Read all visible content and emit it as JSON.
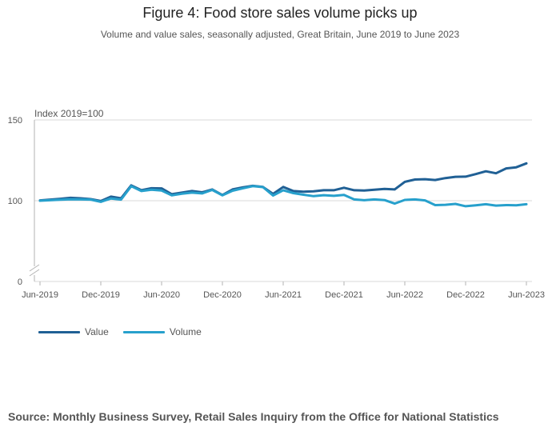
{
  "colors": {
    "value": "#206095",
    "volume": "#27a0cc",
    "grid": "#d9d9d9",
    "axis": "#b3b3b3"
  },
  "chart_data": {
    "type": "line",
    "title": "Figure 4: Food store sales volume picks up",
    "subtitle": "Volume and value sales, seasonally adjusted, Great Britain, June 2019 to June 2023",
    "ylabel": "Index 2019=100",
    "ylim": [
      0,
      150
    ],
    "yticks": [
      0,
      100,
      150
    ],
    "axis_break": true,
    "xticks": [
      "Jun-2019",
      "Dec-2019",
      "Jun-2020",
      "Dec-2020",
      "Jun-2021",
      "Dec-2021",
      "Jun-2022",
      "Dec-2022",
      "Jun-2023"
    ],
    "x": [
      "Jun-2019",
      "Jul-2019",
      "Aug-2019",
      "Sep-2019",
      "Oct-2019",
      "Nov-2019",
      "Dec-2019",
      "Jan-2020",
      "Feb-2020",
      "Mar-2020",
      "Apr-2020",
      "May-2020",
      "Jun-2020",
      "Jul-2020",
      "Aug-2020",
      "Sep-2020",
      "Oct-2020",
      "Nov-2020",
      "Dec-2020",
      "Jan-2021",
      "Feb-2021",
      "Mar-2021",
      "Apr-2021",
      "May-2021",
      "Jun-2021",
      "Jul-2021",
      "Aug-2021",
      "Sep-2021",
      "Oct-2021",
      "Nov-2021",
      "Dec-2021",
      "Jan-2022",
      "Feb-2022",
      "Mar-2022",
      "Apr-2022",
      "May-2022",
      "Jun-2022",
      "Jul-2022",
      "Aug-2022",
      "Sep-2022",
      "Oct-2022",
      "Nov-2022",
      "Dec-2022",
      "Jan-2023",
      "Feb-2023",
      "Mar-2023",
      "Apr-2023",
      "May-2023",
      "Jun-2023"
    ],
    "grid": true,
    "legend_position": "bottom-left",
    "series": [
      {
        "name": "Value",
        "color_key": "value",
        "values": [
          100.2,
          100.7,
          101.2,
          101.8,
          101.5,
          101.0,
          99.8,
          102.5,
          101.5,
          109.5,
          106.5,
          107.7,
          107.6,
          104.0,
          105.0,
          106.0,
          105.2,
          107.0,
          103.5,
          107.0,
          108.2,
          109.2,
          108.5,
          104.2,
          108.5,
          106.0,
          105.6,
          105.8,
          106.5,
          106.5,
          108.0,
          106.5,
          106.3,
          106.8,
          107.3,
          107.0,
          111.7,
          113.1,
          113.3,
          112.8,
          114.0,
          114.8,
          114.9,
          116.5,
          118.2,
          117.0,
          120.0,
          120.7,
          123.1
        ]
      },
      {
        "name": "Volume",
        "color_key": "volume",
        "values": [
          100.0,
          100.3,
          100.6,
          100.9,
          100.8,
          100.7,
          99.3,
          101.4,
          100.7,
          109.0,
          106.0,
          106.8,
          106.3,
          103.3,
          104.3,
          105.0,
          104.5,
          106.7,
          103.3,
          106.2,
          107.6,
          109.0,
          108.4,
          103.2,
          106.5,
          104.7,
          103.7,
          102.8,
          103.4,
          103.0,
          103.6,
          100.8,
          100.3,
          100.8,
          100.4,
          98.2,
          100.5,
          100.8,
          100.2,
          97.3,
          97.5,
          98.0,
          96.6,
          97.2,
          97.8,
          97.0,
          97.3,
          97.2,
          97.8
        ]
      }
    ]
  },
  "source": "Source: Monthly Business Survey, Retail Sales Inquiry from the Office for National Statistics"
}
